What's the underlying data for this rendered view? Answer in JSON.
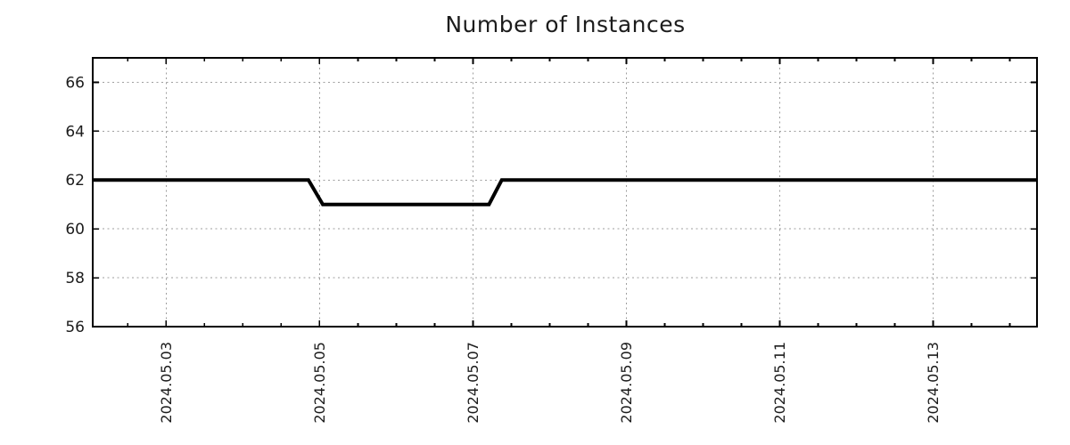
{
  "chart_data": {
    "type": "line",
    "title": "Number of Instances",
    "xlabel": "",
    "ylabel": "",
    "legend_position": "none",
    "x_axis": {
      "range": [
        "2024-05-02T01:00:00",
        "2024-05-14T08:30:00"
      ],
      "major_ticks": [
        {
          "value": "2024-05-03T00:00:00",
          "label": "2024.05.03"
        },
        {
          "value": "2024-05-05T00:00:00",
          "label": "2024.05.05"
        },
        {
          "value": "2024-05-07T00:00:00",
          "label": "2024.05.07"
        },
        {
          "value": "2024-05-09T00:00:00",
          "label": "2024.05.09"
        },
        {
          "value": "2024-05-11T00:00:00",
          "label": "2024.05.11"
        },
        {
          "value": "2024-05-13T00:00:00",
          "label": "2024.05.13"
        }
      ],
      "minor_tick_interval_hours": 12,
      "tick_label_rotation_deg": 90
    },
    "y_axis": {
      "range": [
        56,
        67
      ],
      "major_ticks": [
        {
          "value": 56,
          "label": "56"
        },
        {
          "value": 58,
          "label": "58"
        },
        {
          "value": 60,
          "label": "60"
        },
        {
          "value": 62,
          "label": "62"
        },
        {
          "value": 64,
          "label": "64"
        },
        {
          "value": 66,
          "label": "66"
        }
      ]
    },
    "grid": {
      "visible": true,
      "style": "dashed",
      "color": "#9e9e9e"
    },
    "series": [
      {
        "name": "instances",
        "color": "#000000",
        "line_width": 4,
        "points": [
          [
            "2024-05-02T01:00:00",
            62
          ],
          [
            "2024-05-04T20:30:00",
            62
          ],
          [
            "2024-05-05T01:00:00",
            61
          ],
          [
            "2024-05-07T05:00:00",
            61
          ],
          [
            "2024-05-07T09:00:00",
            62
          ],
          [
            "2024-05-14T08:30:00",
            62
          ]
        ]
      }
    ],
    "frame_color": "#000000",
    "text_color": "#1c1c1c",
    "background_color": "#ffffff"
  }
}
